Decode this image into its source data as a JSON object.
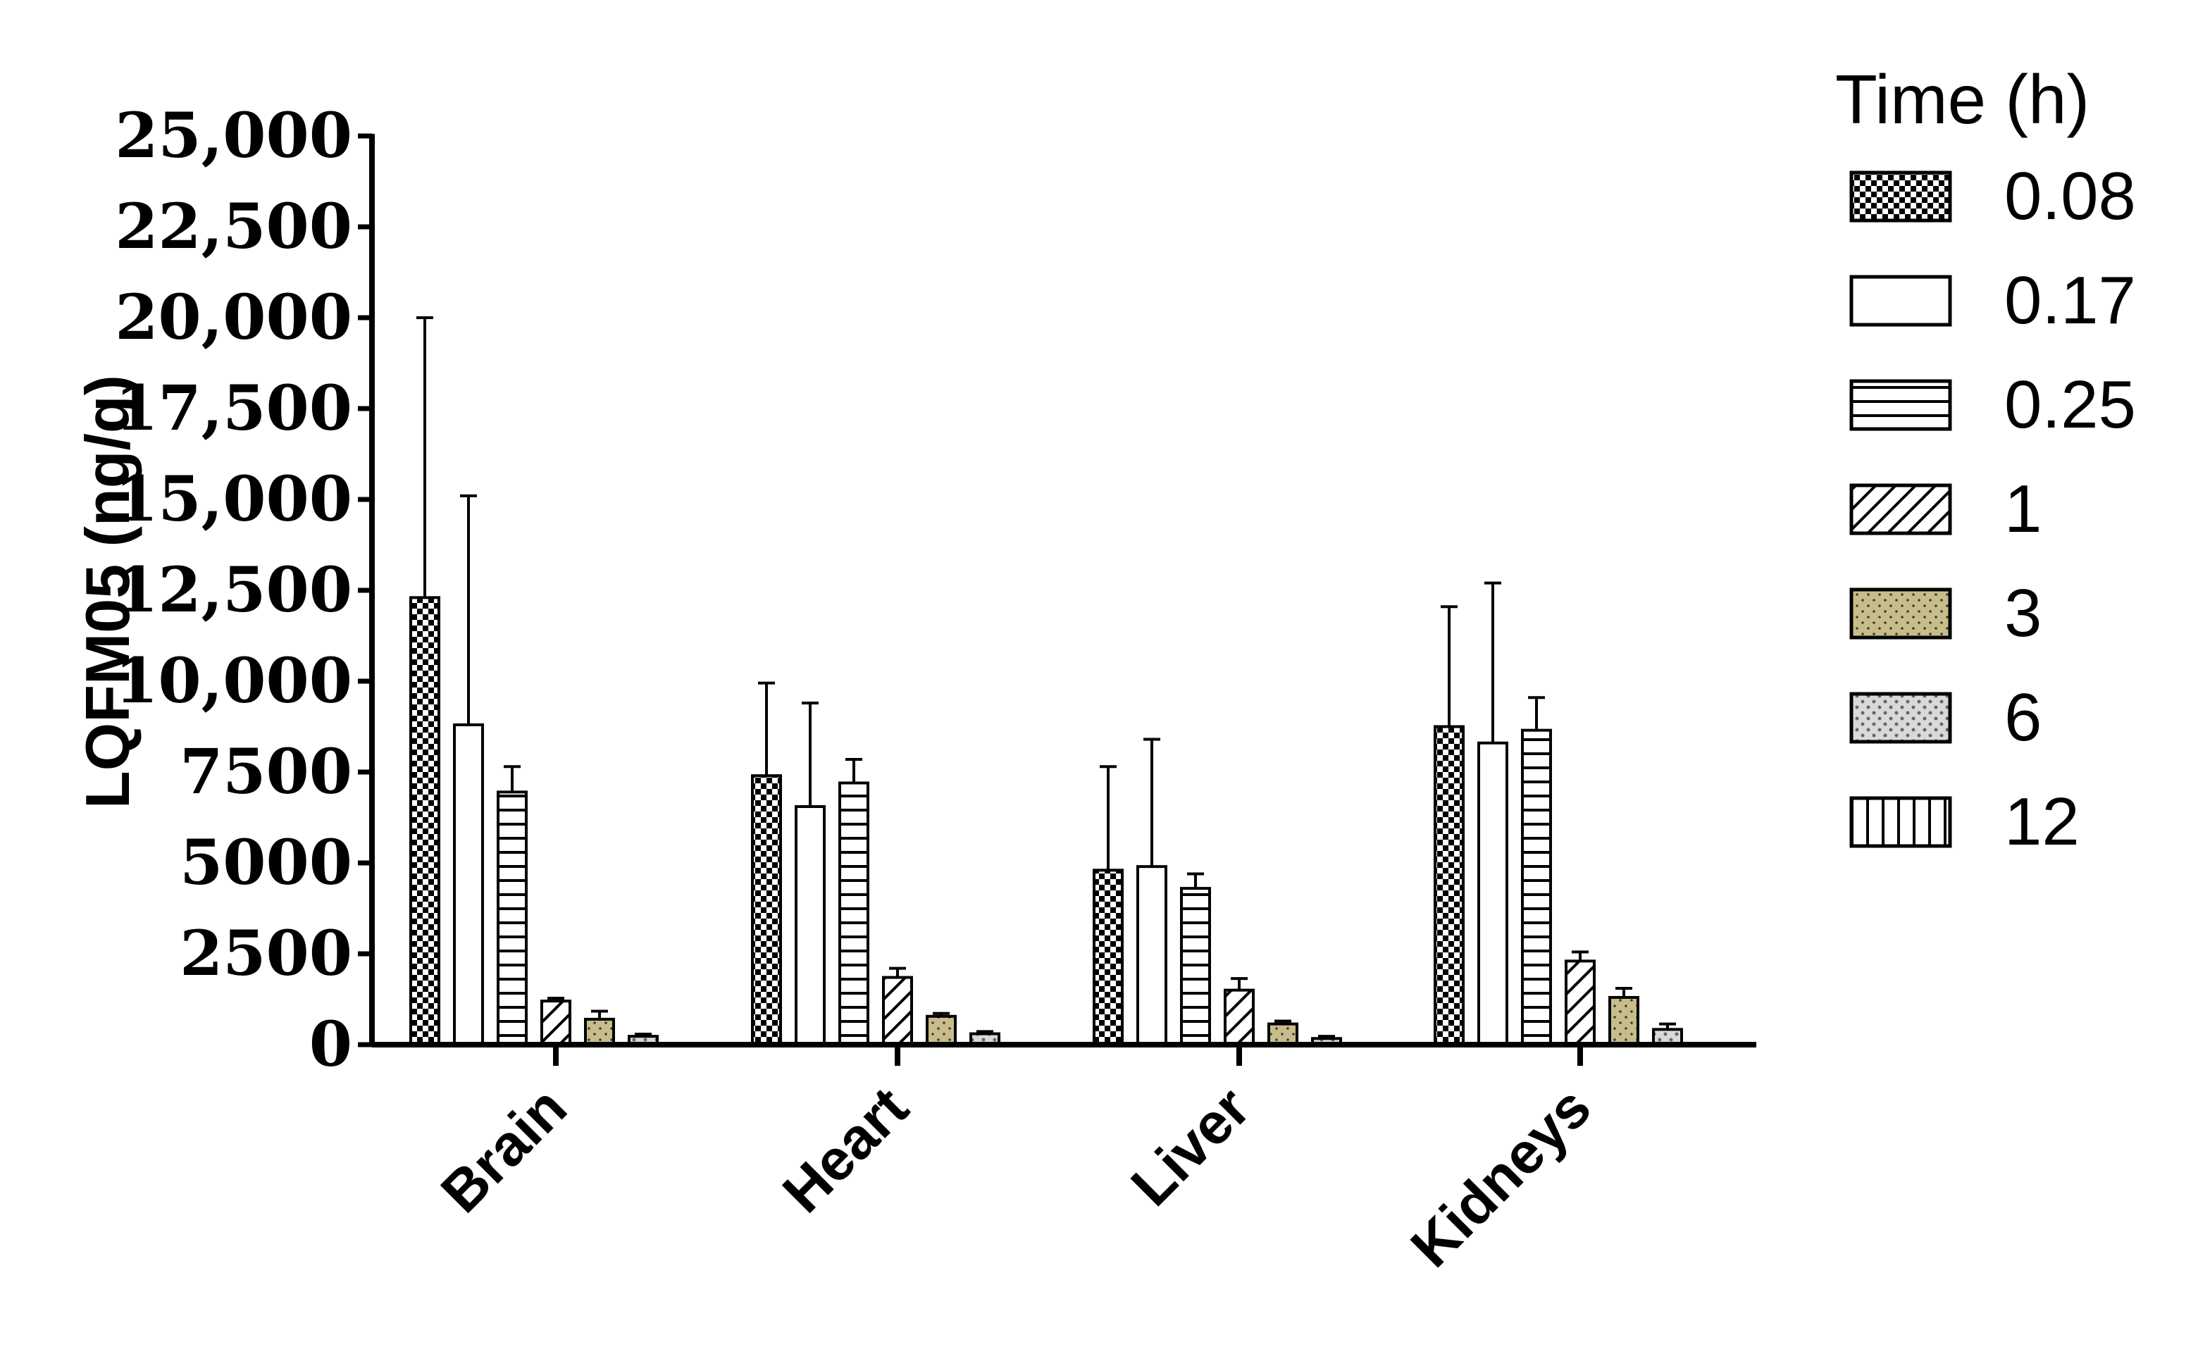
{
  "chart_data": {
    "type": "bar",
    "ylabel": "LQFM05 (ng/g)",
    "legend_title": "Time (h)",
    "legend_position": "right",
    "ylim": [
      0,
      25000
    ],
    "yticks": [
      0,
      2500,
      5000,
      7500,
      10000,
      12500,
      15000,
      17500,
      20000,
      22500,
      25000
    ],
    "ytick_labels": [
      "0",
      "2500",
      "5000",
      "7500",
      "10,000",
      "12,500",
      "15,000",
      "17,500",
      "20,000",
      "22,500",
      "25,000"
    ],
    "categories": [
      "Brain",
      "Heart",
      "Liver",
      "Kidneys"
    ],
    "series": [
      {
        "name": "0.08",
        "pattern": "checker",
        "color": "#000000",
        "values": [
          12300,
          7400,
          4800,
          8750
        ],
        "errors": [
          7700,
          2550,
          2850,
          3300
        ]
      },
      {
        "name": "0.17",
        "pattern": "blank",
        "color": "#ffffff",
        "values": [
          8800,
          6550,
          4900,
          8300
        ],
        "errors": [
          6300,
          2850,
          3500,
          4400
        ]
      },
      {
        "name": "0.25",
        "pattern": "hlines",
        "color": "#000000",
        "values": [
          6950,
          7200,
          4300,
          8650
        ],
        "errors": [
          700,
          650,
          400,
          900
        ]
      },
      {
        "name": "1",
        "pattern": "diagonal",
        "color": "#000000",
        "values": [
          1200,
          1850,
          1500,
          2300
        ],
        "errors": [
          80,
          250,
          320,
          250
        ]
      },
      {
        "name": "3",
        "pattern": "dots",
        "color": "#c8bd8a",
        "values": [
          700,
          780,
          570,
          1300
        ],
        "errors": [
          220,
          80,
          80,
          250
        ]
      },
      {
        "name": "6",
        "pattern": "gray-dots",
        "color": "#bfbfbf",
        "values": [
          230,
          300,
          170,
          420
        ],
        "errors": [
          60,
          60,
          60,
          150
        ]
      },
      {
        "name": "12",
        "pattern": "vlines",
        "color": "#000000",
        "values": [
          0,
          0,
          0,
          0
        ],
        "errors": [
          0,
          0,
          0,
          0
        ]
      }
    ]
  }
}
